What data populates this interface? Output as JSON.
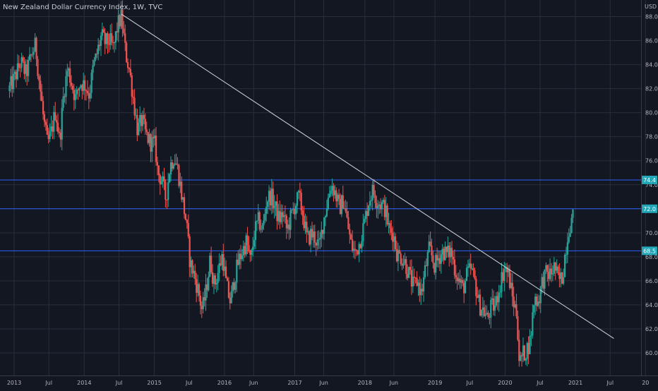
{
  "header": {
    "title": "New Zealand Dollar Currency Index, 1W, TVC",
    "currency": "USD"
  },
  "colors": {
    "background": "#131722",
    "grid": "#2a2e39",
    "up": "#26a69a",
    "down": "#ef5350",
    "trendline": "#d1d4dc",
    "hline": "#2962ff",
    "tag": "#22a7b8",
    "axis_text": "#b2b5be"
  },
  "chart_data": {
    "type": "candlestick",
    "ylim": [
      58.7,
      89.0
    ],
    "y_ticks": [
      "88.0",
      "86.0",
      "84.0",
      "82.0",
      "80.0",
      "78.0",
      "76.0",
      "74.0",
      "72.0",
      "70.0",
      "68.0",
      "66.0",
      "64.0",
      "62.0",
      "60.0"
    ],
    "x_range": [
      "2013-01-01",
      "2021-09-01"
    ],
    "x_ticks": [
      {
        "label": "2013",
        "date": "2013-01-01"
      },
      {
        "label": "Jul",
        "date": "2013-07-01"
      },
      {
        "label": "2014",
        "date": "2014-01-01"
      },
      {
        "label": "Jul",
        "date": "2014-07-01"
      },
      {
        "label": "2015",
        "date": "2015-01-01"
      },
      {
        "label": "Jul",
        "date": "2015-07-01"
      },
      {
        "label": "2016",
        "date": "2016-01-01"
      },
      {
        "label": "Jun",
        "date": "2016-06-01"
      },
      {
        "label": "2017",
        "date": "2017-01-01"
      },
      {
        "label": "Jun",
        "date": "2017-06-01"
      },
      {
        "label": "2018",
        "date": "2018-01-01"
      },
      {
        "label": "Jun",
        "date": "2018-06-01"
      },
      {
        "label": "2019",
        "date": "2019-01-01"
      },
      {
        "label": "Jul",
        "date": "2019-07-01"
      },
      {
        "label": "2020",
        "date": "2020-01-01"
      },
      {
        "label": "Jul",
        "date": "2020-07-01"
      },
      {
        "label": "2021",
        "date": "2021-01-01"
      },
      {
        "label": "Jul",
        "date": "2021-07-01"
      },
      {
        "label": "20",
        "date": "2022-01-01"
      }
    ],
    "price_path": [
      [
        "2012-12-01",
        81.8
      ],
      [
        "2013-01-07",
        83.0
      ],
      [
        "2013-02-04",
        84.2
      ],
      [
        "2013-03-04",
        83.2
      ],
      [
        "2013-04-01",
        84.8
      ],
      [
        "2013-04-22",
        85.6
      ],
      [
        "2013-05-13",
        82.5
      ],
      [
        "2013-06-03",
        79.5
      ],
      [
        "2013-06-24",
        77.3
      ],
      [
        "2013-07-15",
        78.5
      ],
      [
        "2013-08-05",
        80.2
      ],
      [
        "2013-08-26",
        77.6
      ],
      [
        "2013-09-16",
        81.6
      ],
      [
        "2013-10-07",
        83.7
      ],
      [
        "2013-10-28",
        82.4
      ],
      [
        "2013-11-18",
        81.1
      ],
      [
        "2013-12-09",
        82.5
      ],
      [
        "2014-01-06",
        82.3
      ],
      [
        "2014-01-27",
        81.5
      ],
      [
        "2014-02-17",
        83.8
      ],
      [
        "2014-03-10",
        85.0
      ],
      [
        "2014-03-31",
        86.4
      ],
      [
        "2014-04-21",
        85.8
      ],
      [
        "2014-05-12",
        86.0
      ],
      [
        "2014-06-02",
        85.3
      ],
      [
        "2014-06-23",
        87.2
      ],
      [
        "2014-07-14",
        88.0
      ],
      [
        "2014-08-04",
        85.0
      ],
      [
        "2014-08-25",
        83.5
      ],
      [
        "2014-09-15",
        81.0
      ],
      [
        "2014-10-06",
        78.5
      ],
      [
        "2014-10-27",
        79.4
      ],
      [
        "2014-11-17",
        78.2
      ],
      [
        "2014-12-08",
        77.6
      ],
      [
        "2015-01-05",
        77.3
      ],
      [
        "2015-01-19",
        75.0
      ],
      [
        "2015-02-09",
        74.4
      ],
      [
        "2015-03-02",
        72.8
      ],
      [
        "2015-03-23",
        75.5
      ],
      [
        "2015-04-13",
        76.4
      ],
      [
        "2015-05-04",
        75.2
      ],
      [
        "2015-05-25",
        73.0
      ],
      [
        "2015-06-15",
        71.0
      ],
      [
        "2015-07-06",
        67.5
      ],
      [
        "2015-07-27",
        66.5
      ],
      [
        "2015-08-17",
        65.2
      ],
      [
        "2015-09-07",
        63.5
      ],
      [
        "2015-09-28",
        65.2
      ],
      [
        "2015-10-19",
        67.8
      ],
      [
        "2015-11-09",
        65.6
      ],
      [
        "2015-11-30",
        66.8
      ],
      [
        "2015-12-21",
        68.2
      ],
      [
        "2016-01-11",
        65.6
      ],
      [
        "2016-02-01",
        64.2
      ],
      [
        "2016-02-22",
        66.2
      ],
      [
        "2016-03-14",
        67.6
      ],
      [
        "2016-04-04",
        68.5
      ],
      [
        "2016-04-25",
        69.3
      ],
      [
        "2016-05-16",
        67.5
      ],
      [
        "2016-06-06",
        70.1
      ],
      [
        "2016-06-27",
        71.0
      ],
      [
        "2016-07-18",
        70.2
      ],
      [
        "2016-08-08",
        72.8
      ],
      [
        "2016-08-29",
        73.1
      ],
      [
        "2016-09-19",
        72.2
      ],
      [
        "2016-10-10",
        71.1
      ],
      [
        "2016-10-31",
        71.6
      ],
      [
        "2016-11-21",
        70.2
      ],
      [
        "2016-12-12",
        71.3
      ],
      [
        "2017-01-02",
        72.3
      ],
      [
        "2017-01-23",
        73.0
      ],
      [
        "2017-02-13",
        71.5
      ],
      [
        "2017-03-06",
        69.4
      ],
      [
        "2017-03-27",
        69.9
      ],
      [
        "2017-04-17",
        69.6
      ],
      [
        "2017-05-08",
        68.7
      ],
      [
        "2017-05-29",
        70.9
      ],
      [
        "2017-06-19",
        72.5
      ],
      [
        "2017-07-10",
        74.1
      ],
      [
        "2017-07-31",
        73.3
      ],
      [
        "2017-08-21",
        72.0
      ],
      [
        "2017-09-11",
        72.8
      ],
      [
        "2017-10-02",
        70.8
      ],
      [
        "2017-10-23",
        68.9
      ],
      [
        "2017-11-13",
        68.3
      ],
      [
        "2017-12-04",
        69.2
      ],
      [
        "2018-01-01",
        71.0
      ],
      [
        "2018-01-22",
        72.8
      ],
      [
        "2018-02-12",
        73.5
      ],
      [
        "2018-03-05",
        72.7
      ],
      [
        "2018-03-26",
        72.4
      ],
      [
        "2018-04-16",
        72.0
      ],
      [
        "2018-05-07",
        70.2
      ],
      [
        "2018-05-28",
        70.0
      ],
      [
        "2018-06-18",
        68.2
      ],
      [
        "2018-07-09",
        68.0
      ],
      [
        "2018-07-30",
        67.5
      ],
      [
        "2018-08-20",
        66.5
      ],
      [
        "2018-09-10",
        65.5
      ],
      [
        "2018-10-01",
        66.0
      ],
      [
        "2018-10-22",
        64.9
      ],
      [
        "2018-11-12",
        67.0
      ],
      [
        "2018-12-03",
        68.7
      ],
      [
        "2018-12-31",
        67.2
      ],
      [
        "2019-01-21",
        68.0
      ],
      [
        "2019-02-11",
        68.5
      ],
      [
        "2019-03-04",
        68.2
      ],
      [
        "2019-03-25",
        68.5
      ],
      [
        "2019-04-15",
        67.0
      ],
      [
        "2019-05-06",
        66.0
      ],
      [
        "2019-05-27",
        65.3
      ],
      [
        "2019-06-17",
        66.5
      ],
      [
        "2019-07-08",
        67.0
      ],
      [
        "2019-07-29",
        65.8
      ],
      [
        "2019-08-19",
        64.0
      ],
      [
        "2019-09-09",
        63.6
      ],
      [
        "2019-09-30",
        62.8
      ],
      [
        "2019-10-21",
        63.8
      ],
      [
        "2019-11-11",
        63.9
      ],
      [
        "2019-12-02",
        65.5
      ],
      [
        "2019-12-30",
        67.2
      ],
      [
        "2020-01-20",
        66.4
      ],
      [
        "2020-02-10",
        64.4
      ],
      [
        "2020-03-02",
        63.3
      ],
      [
        "2020-03-16",
        59.0
      ],
      [
        "2020-03-30",
        59.8
      ],
      [
        "2020-04-20",
        60.2
      ],
      [
        "2020-05-11",
        61.0
      ],
      [
        "2020-06-01",
        64.6
      ],
      [
        "2020-06-22",
        64.3
      ],
      [
        "2020-07-13",
        66.0
      ],
      [
        "2020-08-03",
        66.6
      ],
      [
        "2020-08-24",
        66.5
      ],
      [
        "2020-09-14",
        67.2
      ],
      [
        "2020-10-05",
        66.0
      ],
      [
        "2020-10-26",
        66.3
      ],
      [
        "2020-11-09",
        68.4
      ],
      [
        "2020-11-30",
        70.6
      ],
      [
        "2020-12-21",
        71.3
      ]
    ],
    "horizontal_lines": [
      {
        "value": 74.4,
        "label": "74.4"
      },
      {
        "value": 72.0,
        "label": "72.0"
      },
      {
        "value": 68.5,
        "label": "68.5"
      }
    ],
    "trendline": {
      "from": {
        "date": "2014-07-14",
        "value": 88.2
      },
      "to": {
        "date": "2021-07-20",
        "value": 61.2
      }
    }
  }
}
